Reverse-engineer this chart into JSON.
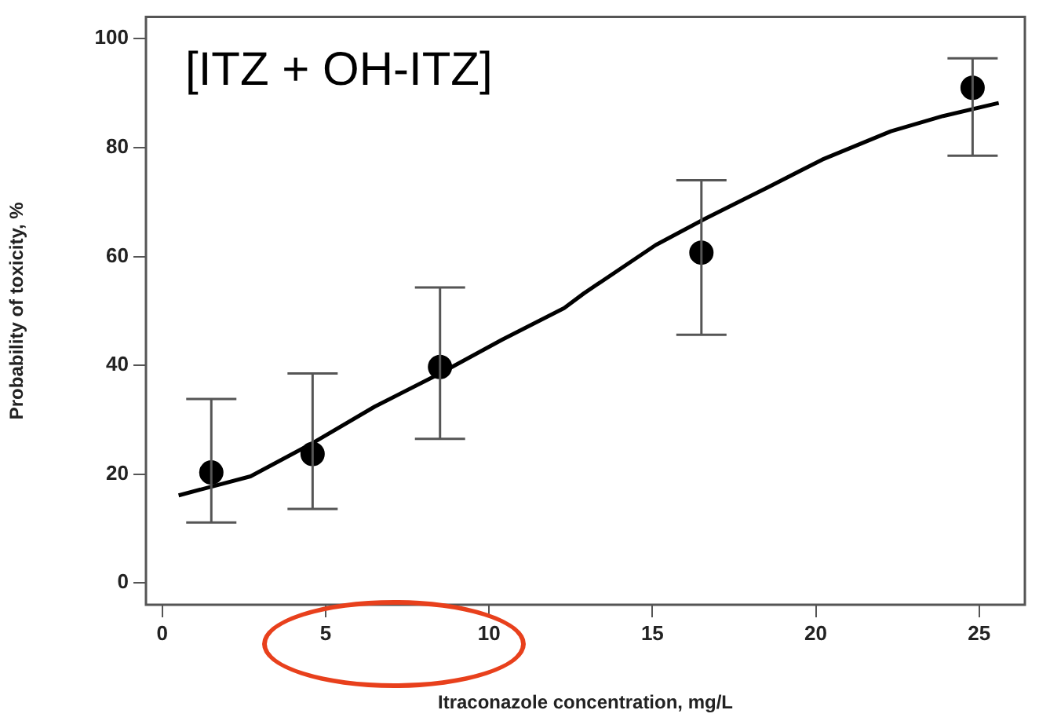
{
  "chart_data": {
    "type": "scatter",
    "xlabel": "Itraconazole concentration, mg/L",
    "ylabel": "Probability of toxicity, %",
    "annotations": [
      "[ITZ + OH-ITZ]"
    ],
    "xlim": [
      -0.5,
      26.4
    ],
    "xticks": [
      0,
      5,
      10,
      15,
      20,
      25
    ],
    "ylim": [
      -4,
      104
    ],
    "yticks": [
      0,
      20,
      40,
      60,
      80,
      100
    ],
    "grid": false,
    "legend": false,
    "series": [
      {
        "type": "scatter",
        "color": "#000000",
        "marker": "circle",
        "x": [
          1.5,
          4.6,
          8.5,
          16.5,
          24.8
        ],
        "values": [
          20.3,
          23.7,
          39.7,
          60.7,
          91
        ],
        "errors": [
          [
            11.1,
            33.8
          ],
          [
            13.6,
            38.5
          ],
          [
            26.5,
            54.3
          ],
          [
            45.6,
            74
          ],
          [
            78.5,
            96.4
          ]
        ]
      },
      {
        "type": "line",
        "color": "#000000",
        "marker": "none",
        "line_style": "solid",
        "x": [
          0.5,
          2.7,
          4.6,
          6.5,
          8.5,
          10.4,
          12.3,
          12.9,
          15.1,
          16.6,
          18.5,
          20.2,
          22.3,
          23.9,
          25.6
        ],
        "values": [
          16.1,
          19.6,
          25.7,
          32.4,
          38.5,
          44.7,
          50.5,
          53.2,
          62.1,
          66.9,
          72.6,
          77.8,
          83,
          85.8,
          88.2
        ]
      }
    ]
  }
}
